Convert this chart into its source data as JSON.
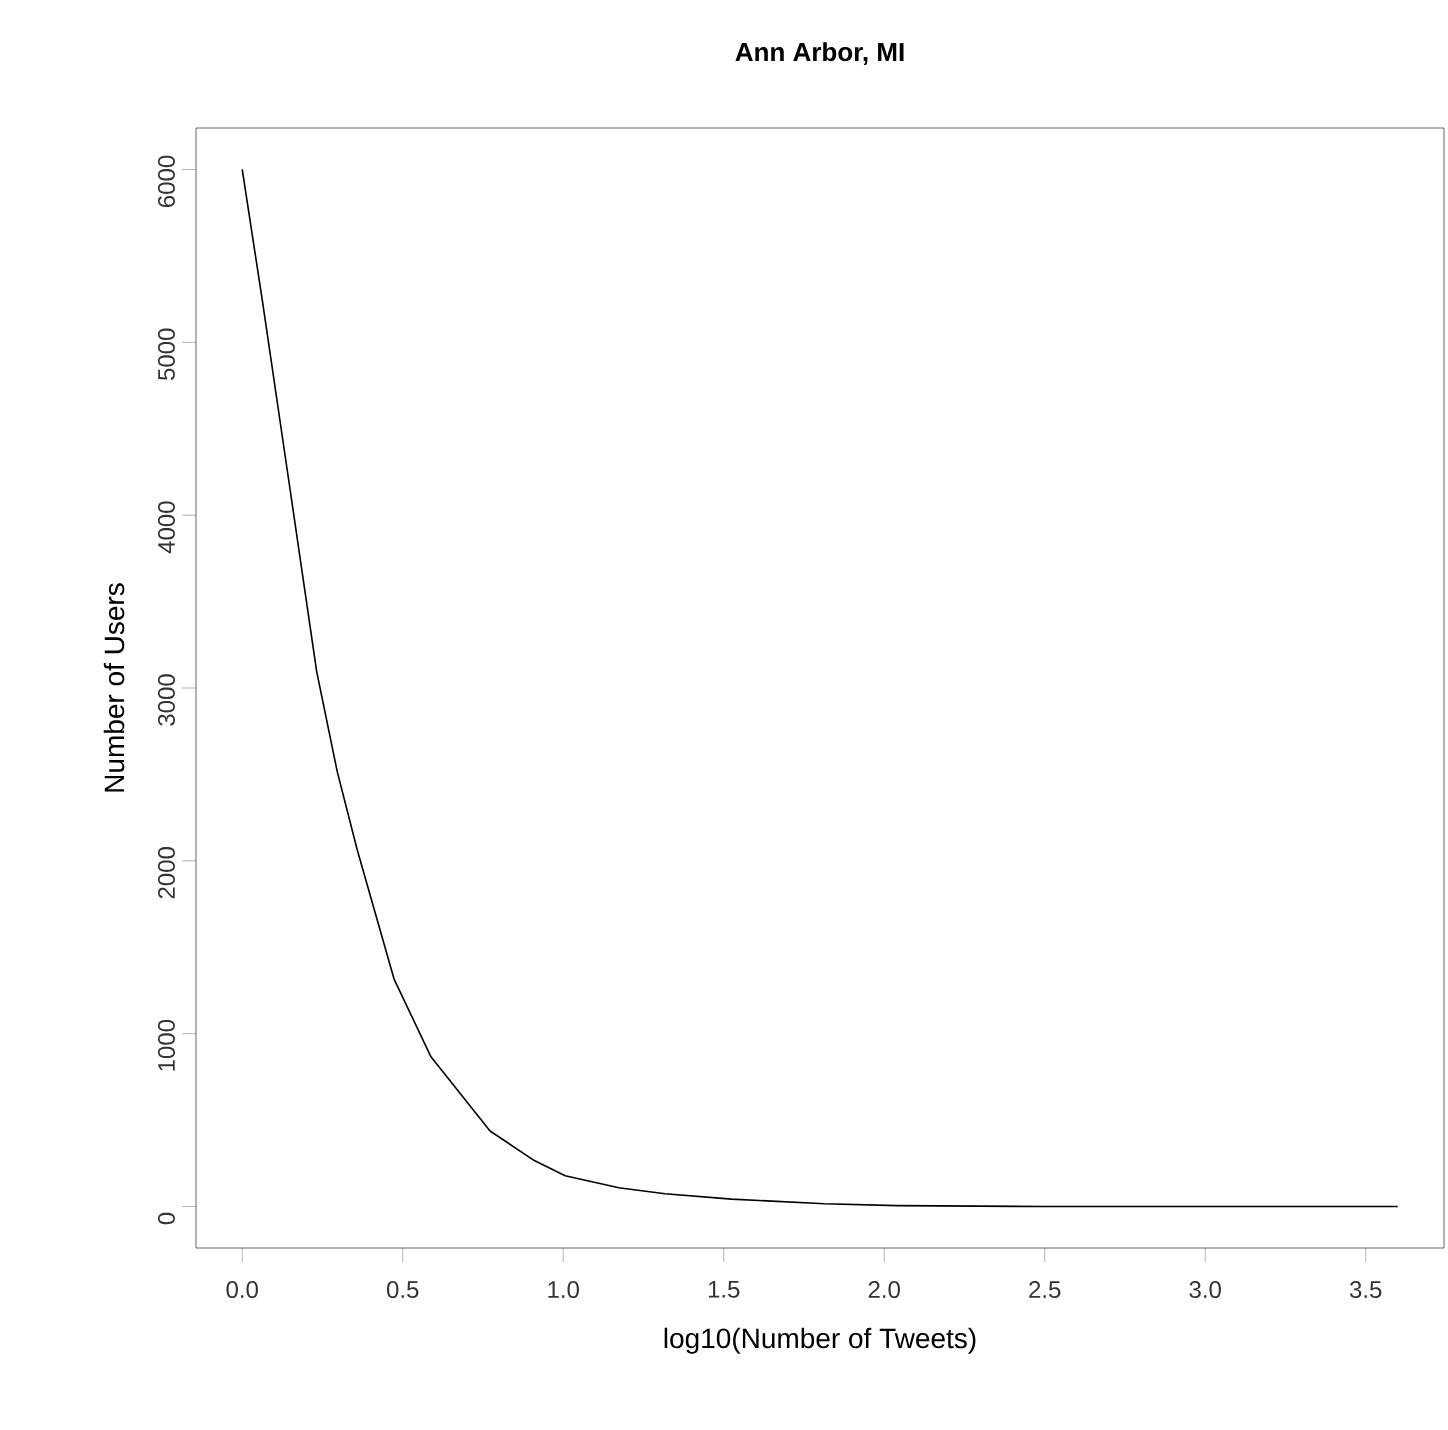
{
  "chart_data": {
    "type": "line",
    "title": "Ann Arbor, MI",
    "xlabel": "log10(Number of Tweets)",
    "ylabel": "Number of Users",
    "color": "#000000",
    "x": [
      0.0,
      0.063,
      0.151,
      0.232,
      0.296,
      0.358,
      0.473,
      0.588,
      0.772,
      0.91,
      1.006,
      1.173,
      1.317,
      1.524,
      1.814,
      2.04,
      2.5,
      3.0,
      3.6
    ],
    "values": [
      6000,
      5238,
      4124,
      3095,
      2516,
      2066,
      1316,
      866,
      437,
      266,
      178,
      109,
      74,
      43,
      16,
      5,
      0,
      0,
      0
    ],
    "xlim": [
      -0.144,
      3.744
    ],
    "ylim": [
      -240,
      6240
    ],
    "xticks": [
      {
        "value": 0,
        "label": "0.0"
      },
      0.5,
      {
        "value": 1,
        "label": "1.0"
      },
      1.5,
      {
        "value": 2,
        "label": "2.0"
      },
      2.5,
      {
        "value": 3,
        "label": "3.0"
      },
      3.5
    ],
    "yticks": [
      0,
      1000,
      2000,
      3000,
      4000,
      5000,
      6000
    ]
  }
}
